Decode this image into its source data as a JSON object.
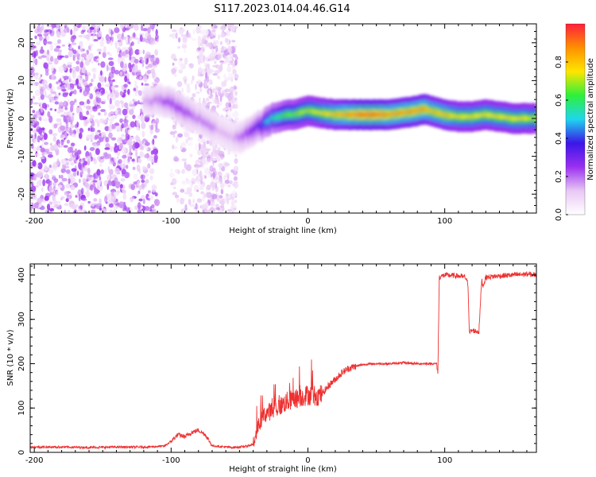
{
  "figure_title": "S117.2023.014.04.46.G14",
  "chart_data": [
    {
      "type": "heatmap",
      "xlabel": "Height of straight line (km)",
      "ylabel": "Frequency (Hz)",
      "xlim": [
        -203,
        167
      ],
      "ylim": [
        -25,
        25
      ],
      "x_ticks": [
        -200,
        -100,
        0,
        100
      ],
      "y_ticks": [
        -20,
        -10,
        0,
        10,
        20
      ],
      "colorbar": {
        "label": "Normalized spectral amplitude",
        "range": [
          0,
          1
        ],
        "ticks": [
          0.0,
          0.2,
          0.4,
          0.6,
          0.8
        ]
      },
      "colormap": [
        "#ffffff",
        "#e8c8f4",
        "#9b30f0",
        "#3a16e8",
        "#1fd6ee",
        "#2ef03a",
        "#ffe600",
        "#ff9000",
        "#ff1e3c"
      ],
      "ridge": {
        "x": [
          -120,
          -110,
          -100,
          -95,
          -90,
          -85,
          -80,
          -75,
          -70,
          -65,
          -60,
          -55,
          -50,
          -45,
          -40,
          -35,
          -30,
          -25,
          -20,
          -15,
          -10,
          -5,
          0,
          10,
          20,
          30,
          40,
          50,
          60,
          70,
          80,
          85,
          90,
          95,
          100,
          110,
          120,
          130,
          140,
          150,
          160,
          167
        ],
        "freq": [
          4,
          5,
          4,
          3,
          2,
          1,
          0,
          -1,
          -2,
          -3,
          -4,
          -5,
          -5,
          -4,
          -3,
          -2,
          -1,
          0,
          0.5,
          1,
          1,
          1.5,
          2,
          1.5,
          1,
          1,
          1,
          1,
          1,
          1.5,
          2,
          2.5,
          2,
          1.5,
          1,
          0.5,
          0.5,
          1,
          0.5,
          0,
          0,
          0
        ],
        "amplitude": [
          0.15,
          0.2,
          0.25,
          0.25,
          0.25,
          0.22,
          0.2,
          0.2,
          0.2,
          0.15,
          0.15,
          0.15,
          0.2,
          0.25,
          0.3,
          0.35,
          0.5,
          0.55,
          0.6,
          0.65,
          0.65,
          0.7,
          0.7,
          0.75,
          0.8,
          0.85,
          0.9,
          0.9,
          0.85,
          0.85,
          0.85,
          0.85,
          0.8,
          0.8,
          0.8,
          0.75,
          0.75,
          0.75,
          0.75,
          0.75,
          0.75,
          0.7
        ]
      },
      "noise_regions": [
        {
          "x_range": [
            -203,
            -110
          ],
          "freq_range": [
            -25,
            25
          ],
          "density": "high"
        },
        {
          "x_range": [
            -100,
            -80
          ],
          "freq_range": [
            -25,
            25
          ],
          "density": "low"
        },
        {
          "x_range": [
            -80,
            -52
          ],
          "freq_range": [
            -25,
            25
          ],
          "density": "medium"
        }
      ]
    },
    {
      "type": "line",
      "xlabel": "Height of straight line (km)",
      "ylabel": "SNR (10 * v/v)",
      "xlim": [
        -203,
        167
      ],
      "ylim": [
        0,
        425
      ],
      "x_ticks": [
        -200,
        -100,
        0,
        100
      ],
      "y_ticks": [
        0,
        100,
        200,
        300,
        400
      ],
      "color": "#ee3030",
      "series": [
        {
          "x": [
            -203,
            -180,
            -160,
            -140,
            -120,
            -105,
            -100,
            -95,
            -90,
            -85,
            -80,
            -75,
            -70,
            -60,
            -55,
            -50,
            -45,
            -40,
            -38,
            -35,
            -33,
            -30,
            -25,
            -20,
            -15,
            -10,
            -5,
            0,
            5,
            10,
            15,
            20,
            25,
            30,
            40,
            50,
            60,
            70,
            80,
            90,
            94,
            95,
            96,
            100,
            110,
            115,
            117,
            118,
            120,
            125,
            127,
            128,
            130,
            140,
            150,
            160,
            167
          ],
          "y": [
            12,
            12,
            11,
            12,
            12,
            14,
            25,
            40,
            35,
            45,
            50,
            40,
            15,
            12,
            11,
            12,
            14,
            18,
            40,
            70,
            80,
            90,
            95,
            105,
            115,
            120,
            125,
            130,
            128,
            130,
            150,
            165,
            180,
            190,
            198,
            200,
            200,
            202,
            200,
            200,
            200,
            180,
            395,
            400,
            398,
            395,
            380,
            270,
            275,
            272,
            390,
            375,
            395,
            398,
            400,
            402,
            400
          ]
        }
      ]
    }
  ]
}
